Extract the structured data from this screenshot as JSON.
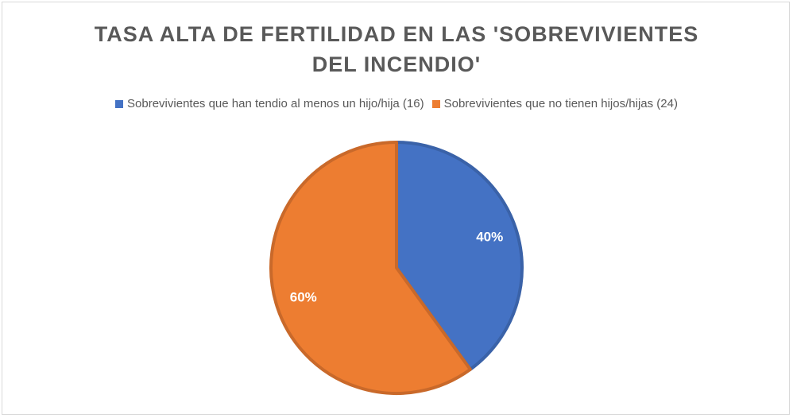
{
  "chart_data": {
    "type": "pie",
    "title_lines": [
      "TASA ALTA DE FERTILIDAD EN LAS 'SOBREVIVIENTES",
      "DEL INCENDIO'"
    ],
    "slices": [
      {
        "legend": "Sobrevivientes que han tendio al menos un hijo/hija (16)",
        "value": 16,
        "label": "40%",
        "color": "#4472C4",
        "edge": "#3a62a8"
      },
      {
        "legend": "Sobrevivientes que no tienen hijos/hijas (24)",
        "value": 24,
        "label": "60%",
        "color": "#ED7D31",
        "edge": "#c9692a"
      }
    ],
    "legend_position": "top"
  }
}
